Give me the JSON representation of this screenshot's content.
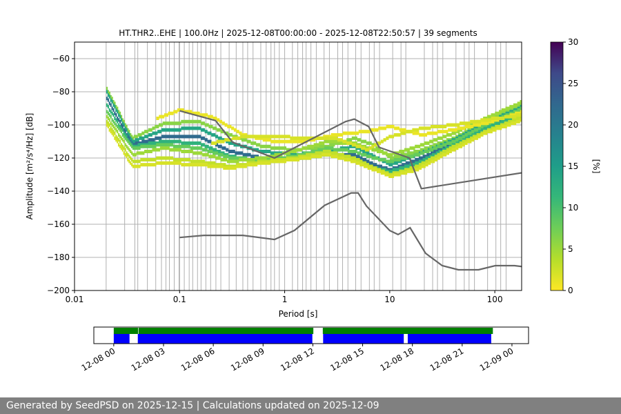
{
  "title": "HT.THR2..EHE | 100.0Hz | 2025-12-08T00:00:00 - 2025-12-08T22:50:57 | 39 segments",
  "footer": "Generated by SeedPSD on 2025-12-15 | Calculations updated on 2025-12-09",
  "chart_data": {
    "type": "heatmap",
    "xlabel": "Period [s]",
    "ylabel": "Amplitude [m²/s⁴/Hz] [dB]",
    "xscale": "log",
    "xlim": [
      0.01,
      180
    ],
    "ylim": [
      -200,
      -50
    ],
    "xticks": [
      {
        "v": 0.01,
        "label": "0.01"
      },
      {
        "v": 0.1,
        "label": "0.1"
      },
      {
        "v": 1,
        "label": "1"
      },
      {
        "v": 10,
        "label": "10"
      },
      {
        "v": 100,
        "label": "100"
      }
    ],
    "yticks": [
      -200,
      -180,
      -160,
      -140,
      -120,
      -100,
      -80,
      -60
    ],
    "period_gridlines": [
      0.02,
      0.03,
      0.0375,
      0.04,
      0.0494,
      0.0593,
      0.0672,
      0.0741,
      0.08,
      0.0889,
      0.0988,
      0.1,
      0.1108,
      0.1234,
      0.1333,
      0.1481,
      0.16,
      0.1778,
      0.1975,
      0.2216,
      0.2469,
      0.2963,
      0.3457,
      0.4,
      0.4444,
      0.5,
      0.5926,
      0.6667,
      0.7407,
      0.8,
      0.8889,
      1.0,
      1.1852,
      1.3333,
      1.4815,
      1.6,
      1.7778,
      2.0,
      2.3704,
      2.6667,
      3.2,
      3.5556,
      4.0,
      4.7407,
      5.3333,
      6.4,
      7.1111,
      8.0,
      10.6667,
      12.8,
      14.2222,
      21.3333,
      25.6,
      28.4444,
      32.0,
      42.6667,
      51.2,
      56.8889,
      64.0,
      85.3333,
      102.4,
      113.7778,
      128.0
    ],
    "colorbar": {
      "label": "[%]",
      "min": 0,
      "max": 30,
      "ticks": [
        0,
        5,
        10,
        15,
        20,
        25,
        30
      ],
      "colormap": "viridis_r"
    },
    "high_noise_model": {
      "period": [
        0.1,
        0.22,
        0.32,
        0.8,
        3.8,
        4.6,
        6.3,
        7.9,
        15.4,
        20.0,
        354.8
      ],
      "db": [
        -91.5,
        -97.4,
        -110.5,
        -120.0,
        -98.0,
        -96.5,
        -101.0,
        -113.5,
        -120.0,
        -138.5,
        -126.0
      ]
    },
    "low_noise_model": {
      "period": [
        0.1,
        0.17,
        0.4,
        0.8,
        1.24,
        2.4,
        4.3,
        5.0,
        6.0,
        10.0,
        12.0,
        15.6,
        21.9,
        31.6,
        45.0,
        70.0,
        101.0,
        154.0,
        328.0
      ],
      "db": [
        -168.0,
        -166.7,
        -166.7,
        -169.2,
        -163.7,
        -148.6,
        -141.1,
        -141.1,
        -149.0,
        -163.8,
        -166.2,
        -162.1,
        -177.5,
        -185.0,
        -187.5,
        -187.5,
        -185.0,
        -185.0,
        -187.5
      ]
    },
    "psd_curves": [
      {
        "period": [
          0.02,
          0.035,
          0.07,
          0.15,
          0.3,
          0.6,
          1.2,
          2.5,
          4.5,
          7,
          10,
          18,
          40,
          80,
          180
        ],
        "db": [
          -78,
          -108,
          -99,
          -98,
          -106,
          -113,
          -115,
          -113,
          -108,
          -112,
          -120,
          -116,
          -108,
          -98,
          -87
        ],
        "pct": 6
      },
      {
        "period": [
          0.02,
          0.035,
          0.07,
          0.15,
          0.3,
          0.6,
          1.2,
          2.5,
          4.5,
          7,
          10,
          18,
          40,
          80,
          180
        ],
        "db": [
          -80,
          -110,
          -103,
          -102,
          -111,
          -116,
          -118,
          -116,
          -113,
          -119,
          -124,
          -118,
          -109,
          -99,
          -89
        ],
        "pct": 14
      },
      {
        "period": [
          0.02,
          0.035,
          0.07,
          0.15,
          0.3,
          0.6,
          1.2,
          2.5,
          4.5,
          7,
          10,
          18,
          40,
          80,
          180
        ],
        "db": [
          -84,
          -112,
          -107,
          -107,
          -116,
          -120,
          -120,
          -118,
          -118,
          -124,
          -127,
          -121,
          -111,
          -101,
          -92
        ],
        "pct": 22
      },
      {
        "period": [
          0.02,
          0.035,
          0.07,
          0.15,
          0.3,
          0.6,
          1.2,
          2.5,
          4.5,
          7,
          10,
          18,
          40,
          80,
          180
        ],
        "db": [
          -88,
          -113,
          -110,
          -111,
          -119,
          -122,
          -121,
          -118,
          -121,
          -126,
          -128,
          -123,
          -112,
          -102,
          -93
        ],
        "pct": 12
      },
      {
        "period": [
          0.02,
          0.035,
          0.07,
          0.15,
          0.3,
          0.6,
          1.2,
          2.5,
          4.5,
          7,
          10,
          18,
          40,
          80,
          180
        ],
        "db": [
          -92,
          -114,
          -112,
          -114,
          -120,
          -121,
          -119,
          -114,
          -116,
          -120,
          -122,
          -118,
          -110,
          -100,
          -90
        ],
        "pct": 8
      },
      {
        "period": [
          0.02,
          0.035,
          0.07,
          0.15,
          0.3,
          0.6,
          1.2,
          2.5,
          4.5,
          7,
          10,
          18,
          40,
          80,
          180
        ],
        "db": [
          -95,
          -118,
          -114,
          -117,
          -122,
          -120,
          -116,
          -110,
          -111,
          -115,
          -118,
          -113,
          -105,
          -96,
          -86
        ],
        "pct": 5
      },
      {
        "period": [
          0.02,
          0.035,
          0.07,
          0.15,
          0.3,
          0.6,
          1.2,
          2.5,
          4.5,
          7,
          10,
          18,
          40,
          80,
          180
        ],
        "db": [
          -98,
          -122,
          -120,
          -122,
          -125,
          -122,
          -120,
          -116,
          -120,
          -126,
          -130,
          -125,
          -113,
          -104,
          -95
        ],
        "pct": 3
      },
      {
        "period": [
          0.02,
          0.035,
          0.07,
          0.15,
          0.3,
          0.6,
          1.2,
          2.5,
          4.5,
          7,
          10,
          18,
          40,
          80,
          180
        ],
        "db": [
          -100,
          -125,
          -123,
          -124,
          -126,
          -123,
          -121,
          -118,
          -122,
          -127,
          -131,
          -127,
          -115,
          -105,
          -97
        ],
        "pct": 2
      },
      {
        "period": [
          0.06,
          0.1,
          0.2,
          0.4,
          0.8,
          1.5,
          3,
          6,
          10,
          20,
          40,
          80,
          180
        ],
        "db": [
          -96,
          -91,
          -95,
          -106,
          -110,
          -110,
          -106,
          -104,
          -101,
          -106,
          -103,
          -99,
          -92
        ],
        "pct": 1
      },
      {
        "period": [
          0.2,
          0.4,
          0.8,
          1.5,
          3,
          6,
          10,
          20,
          40,
          80,
          180
        ],
        "db": [
          -111,
          -107,
          -107,
          -108,
          -108,
          -115,
          -107,
          -102,
          -100,
          -97,
          -94
        ],
        "pct": 2
      }
    ],
    "timeline": {
      "tick_labels": [
        "12-08 00",
        "12-08 03",
        "12-08 06",
        "12-08 09",
        "12-08 12",
        "12-08 15",
        "12-08 18",
        "12-08 21",
        "12-09 00"
      ],
      "range_hours": [
        -1.2,
        25
      ],
      "data_segments_hours": [
        [
          0.0,
          1.47
        ],
        [
          1.5,
          12.03
        ],
        [
          12.6,
          22.85
        ]
      ],
      "psd_segments_hours": [
        [
          0.0,
          0.95
        ],
        [
          1.45,
          11.97
        ],
        [
          12.62,
          17.48
        ],
        [
          17.72,
          22.75
        ]
      ],
      "data_color": "#008000",
      "psd_color": "#0000ff"
    }
  }
}
